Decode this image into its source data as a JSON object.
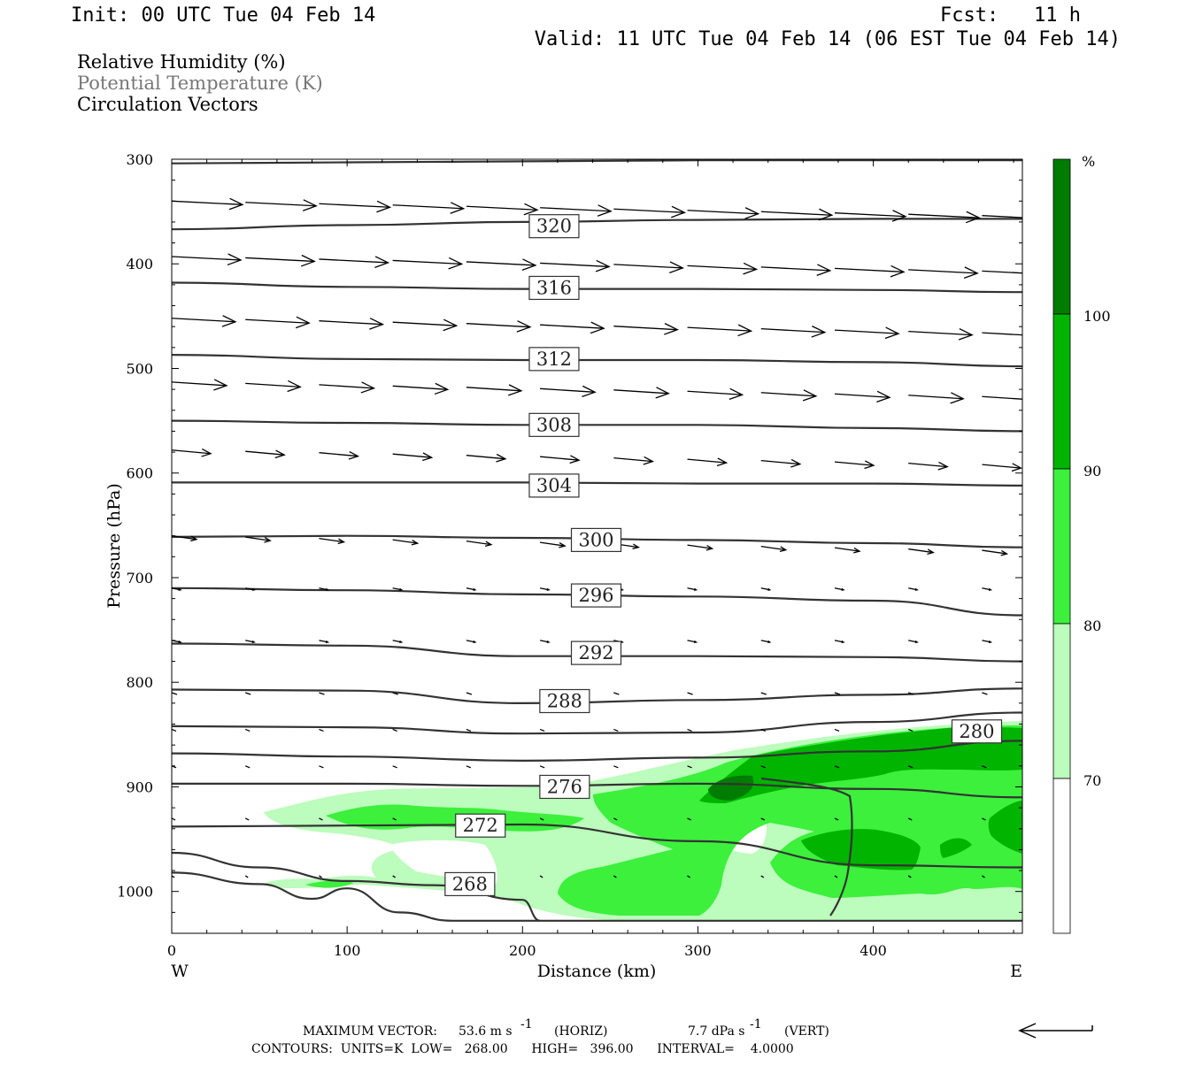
{
  "header": {
    "init": "Init: 00 UTC Tue 04 Feb 14",
    "fcst_label": "Fcst:",
    "fcst_value": "11 h",
    "valid": "Valid: 11 UTC Tue 04 Feb 14 (06 EST Tue 04 Feb 14)"
  },
  "legend": {
    "line1": "Relative Humidity (%)",
    "line2": "Potential Temperature (K)",
    "line3": "Circulation Vectors",
    "line2_color": "#777777"
  },
  "axes": {
    "ylabel": "Pressure (hPa)",
    "xlabel": "Distance (km)",
    "west": "W",
    "east": "E"
  },
  "colorbar": {
    "unit": "%",
    "levels": [
      "100",
      "90",
      "80",
      "70"
    ],
    "colors": [
      "#007c00",
      "#00b400",
      "#3cf03c",
      "#bcfcbc",
      "#ffffff"
    ]
  },
  "footer": {
    "max_vector_label": "MAXIMUM VECTOR:",
    "horiz_value": "53.6 m s",
    "horiz_unit": "(HORIZ)",
    "vert_value": "7.7 dPa s",
    "vert_unit": "(VERT)",
    "exponent": "-1",
    "contours": "CONTOURS:  UNITS=K  LOW=   268.00      HIGH=   396.00      INTERVAL=    4.0000"
  },
  "chart_data": {
    "type": "cross-section",
    "title": "",
    "xlabel": "Distance (km)",
    "ylabel": "Pressure (hPa)",
    "xlim": [
      0,
      485
    ],
    "ylim": [
      1040,
      300
    ],
    "y_scale": "linear-inverted",
    "x_ticks": [
      0,
      100,
      200,
      300,
      400
    ],
    "y_ticks": [
      300,
      400,
      500,
      600,
      700,
      800,
      900,
      1000
    ],
    "contour_labels": [
      {
        "value": "320",
        "x": 218,
        "p": 364
      },
      {
        "value": "316",
        "x": 218,
        "p": 423
      },
      {
        "value": "312",
        "x": 218,
        "p": 491
      },
      {
        "value": "308",
        "x": 218,
        "p": 554
      },
      {
        "value": "304",
        "x": 218,
        "p": 612
      },
      {
        "value": "300",
        "x": 242,
        "p": 664
      },
      {
        "value": "296",
        "x": 242,
        "p": 717
      },
      {
        "value": "292",
        "x": 242,
        "p": 772
      },
      {
        "value": "288",
        "x": 224,
        "p": 818
      },
      {
        "value": "280",
        "x": 459,
        "p": 847
      },
      {
        "value": "276",
        "x": 224,
        "p": 900
      },
      {
        "value": "272",
        "x": 176,
        "p": 937
      },
      {
        "value": "268",
        "x": 170,
        "p": 993
      }
    ],
    "isentropes": [
      {
        "x": [
          0,
          100,
          200,
          300,
          400,
          485
        ],
        "p": [
          304,
          303,
          302,
          301,
          301,
          301
        ]
      },
      {
        "x": [
          0,
          100,
          200,
          300,
          400,
          485
        ],
        "p": [
          367,
          363,
          360,
          358,
          357,
          357
        ]
      },
      {
        "x": [
          0,
          100,
          200,
          300,
          400,
          485
        ],
        "p": [
          418,
          422,
          424,
          424,
          425,
          427
        ]
      },
      {
        "x": [
          0,
          100,
          200,
          300,
          400,
          485
        ],
        "p": [
          487,
          491,
          492,
          492,
          494,
          498
        ]
      },
      {
        "x": [
          0,
          100,
          200,
          300,
          400,
          485
        ],
        "p": [
          550,
          552,
          554,
          554,
          557,
          560
        ]
      },
      {
        "x": [
          0,
          100,
          200,
          300,
          400,
          485
        ],
        "p": [
          609,
          609,
          609,
          610,
          610,
          612
        ]
      },
      {
        "x": [
          0,
          100,
          200,
          300,
          400,
          485
        ],
        "p": [
          661,
          660,
          662,
          664,
          667,
          671
        ]
      },
      {
        "x": [
          0,
          100,
          200,
          300,
          400,
          485
        ],
        "p": [
          710,
          712,
          716,
          718,
          722,
          736
        ]
      },
      {
        "x": [
          0,
          100,
          200,
          300,
          400,
          485
        ],
        "p": [
          763,
          765,
          775,
          775,
          776,
          780
        ]
      },
      {
        "x": [
          0,
          100,
          200,
          300,
          400,
          485
        ],
        "p": [
          807,
          808,
          820,
          817,
          812,
          806
        ]
      },
      {
        "x": [
          0,
          100,
          200,
          300,
          400,
          485
        ],
        "p": [
          842,
          843,
          849,
          848,
          838,
          829
        ]
      },
      {
        "x": [
          0,
          100,
          200,
          300,
          400,
          485
        ],
        "p": [
          868,
          871,
          875,
          872,
          866,
          856
        ]
      },
      {
        "x": [
          0,
          100,
          200,
          300,
          400,
          485
        ],
        "p": [
          897,
          897,
          899,
          897,
          902,
          910
        ]
      },
      {
        "x": [
          0,
          100,
          200,
          300,
          400,
          485
        ],
        "p": [
          938,
          937,
          936,
          952,
          975,
          977
        ]
      },
      {
        "x": [
          0,
          50,
          100,
          150,
          200,
          210
        ],
        "p": [
          963,
          977,
          990,
          994,
          1008,
          1028
        ]
      },
      {
        "x": [
          0,
          50,
          80,
          100,
          130,
          160,
          485
        ],
        "p": [
          982,
          993,
          1007,
          997,
          1020,
          1028,
          1028
        ]
      }
    ],
    "rh_levels": [
      70,
      80,
      90,
      100
    ],
    "vectors_note": "circulation vectors (rightward, weakening with depth)"
  }
}
